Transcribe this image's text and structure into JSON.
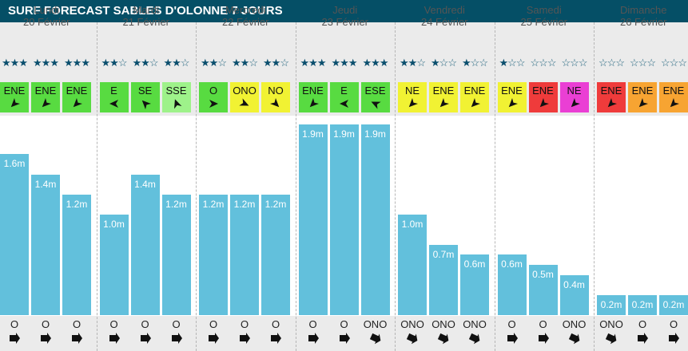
{
  "title": "SURF FORECAST SABLES D'OLONNE 7 JOURS",
  "colors": {
    "title_bg": "#054f66",
    "wave_bar": "#62c0dc",
    "wind_green": "#58db41",
    "wind_lightgreen": "#9ef28a",
    "wind_yellow": "#f1f233",
    "wind_red": "#ef3b3b",
    "wind_magenta": "#ea3fd4",
    "wind_orange": "#f7a432"
  },
  "days": [
    {
      "name": "Lundi",
      "date": "20 Février",
      "slots": [
        {
          "stars": 3,
          "wind_dir": "ENE",
          "wind_color": "green",
          "arrow_deg": 225,
          "wave": "1.6m",
          "wave_m": 1.6,
          "swell_dir": "O",
          "swell_deg": 90
        },
        {
          "stars": 3,
          "wind_dir": "ENE",
          "wind_color": "green",
          "arrow_deg": 225,
          "wave": "1.4m",
          "wave_m": 1.4,
          "swell_dir": "O",
          "swell_deg": 90
        },
        {
          "stars": 3,
          "wind_dir": "ENE",
          "wind_color": "green",
          "arrow_deg": 225,
          "wave": "1.2m",
          "wave_m": 1.2,
          "swell_dir": "O",
          "swell_deg": 90
        }
      ]
    },
    {
      "name": "Mardi",
      "date": "21 Février",
      "slots": [
        {
          "stars": 2,
          "wind_dir": "E",
          "wind_color": "green",
          "arrow_deg": 270,
          "wave": "1.0m",
          "wave_m": 1.0,
          "swell_dir": "O",
          "swell_deg": 90
        },
        {
          "stars": 2,
          "wind_dir": "SE",
          "wind_color": "green",
          "arrow_deg": 315,
          "wave": "1.4m",
          "wave_m": 1.4,
          "swell_dir": "O",
          "swell_deg": 90
        },
        {
          "stars": 2,
          "wind_dir": "SSE",
          "wind_color": "lightgreen",
          "arrow_deg": 340,
          "wave": "1.2m",
          "wave_m": 1.2,
          "swell_dir": "O",
          "swell_deg": 90
        }
      ]
    },
    {
      "name": "Mercredi",
      "date": "22 Février",
      "slots": [
        {
          "stars": 2,
          "wind_dir": "O",
          "wind_color": "green",
          "arrow_deg": 90,
          "wave": "1.2m",
          "wave_m": 1.2,
          "swell_dir": "O",
          "swell_deg": 90
        },
        {
          "stars": 2,
          "wind_dir": "ONO",
          "wind_color": "yellow",
          "arrow_deg": 115,
          "wave": "1.2m",
          "wave_m": 1.2,
          "swell_dir": "O",
          "swell_deg": 90
        },
        {
          "stars": 2,
          "wind_dir": "NO",
          "wind_color": "yellow",
          "arrow_deg": 135,
          "wave": "1.2m",
          "wave_m": 1.2,
          "swell_dir": "O",
          "swell_deg": 90
        }
      ]
    },
    {
      "name": "Jeudi",
      "date": "23 Février",
      "slots": [
        {
          "stars": 3,
          "wind_dir": "ENE",
          "wind_color": "green",
          "arrow_deg": 225,
          "wave": "1.9m",
          "wave_m": 1.9,
          "swell_dir": "O",
          "swell_deg": 90
        },
        {
          "stars": 3,
          "wind_dir": "E",
          "wind_color": "green",
          "arrow_deg": 270,
          "wave": "1.9m",
          "wave_m": 1.9,
          "swell_dir": "O",
          "swell_deg": 90
        },
        {
          "stars": 3,
          "wind_dir": "ESE",
          "wind_color": "green",
          "arrow_deg": 295,
          "wave": "1.9m",
          "wave_m": 1.9,
          "swell_dir": "ONO",
          "swell_deg": 115
        }
      ]
    },
    {
      "name": "Vendredi",
      "date": "24 Février",
      "slots": [
        {
          "stars": 2,
          "wind_dir": "NE",
          "wind_color": "yellow",
          "arrow_deg": 225,
          "wave": "1.0m",
          "wave_m": 1.0,
          "swell_dir": "ONO",
          "swell_deg": 115
        },
        {
          "stars": 1,
          "wind_dir": "ENE",
          "wind_color": "yellow",
          "arrow_deg": 225,
          "wave": "0.7m",
          "wave_m": 0.7,
          "swell_dir": "ONO",
          "swell_deg": 115
        },
        {
          "stars": 1,
          "wind_dir": "ENE",
          "wind_color": "yellow",
          "arrow_deg": 225,
          "wave": "0.6m",
          "wave_m": 0.6,
          "swell_dir": "ONO",
          "swell_deg": 115
        }
      ]
    },
    {
      "name": "Samedi",
      "date": "25 Février",
      "slots": [
        {
          "stars": 1,
          "wind_dir": "ENE",
          "wind_color": "yellow",
          "arrow_deg": 225,
          "wave": "0.6m",
          "wave_m": 0.6,
          "swell_dir": "O",
          "swell_deg": 90
        },
        {
          "stars": 0,
          "wind_dir": "ENE",
          "wind_color": "red",
          "arrow_deg": 225,
          "wave": "0.5m",
          "wave_m": 0.5,
          "swell_dir": "O",
          "swell_deg": 90
        },
        {
          "stars": 0,
          "wind_dir": "NE",
          "wind_color": "magenta",
          "arrow_deg": 225,
          "wave": "0.4m",
          "wave_m": 0.4,
          "swell_dir": "ONO",
          "swell_deg": 115
        }
      ]
    },
    {
      "name": "Dimanche",
      "date": "26 Février",
      "slots": [
        {
          "stars": 0,
          "wind_dir": "ENE",
          "wind_color": "red",
          "arrow_deg": 225,
          "wave": "0.2m",
          "wave_m": 0.2,
          "swell_dir": "ONO",
          "swell_deg": 115
        },
        {
          "stars": 0,
          "wind_dir": "ENE",
          "wind_color": "orange",
          "arrow_deg": 225,
          "wave": "0.2m",
          "wave_m": 0.2,
          "swell_dir": "O",
          "swell_deg": 90
        },
        {
          "stars": 0,
          "wind_dir": "ENE",
          "wind_color": "orange",
          "arrow_deg": 225,
          "wave": "0.2m",
          "wave_m": 0.2,
          "swell_dir": "O",
          "swell_deg": 90
        }
      ]
    }
  ]
}
